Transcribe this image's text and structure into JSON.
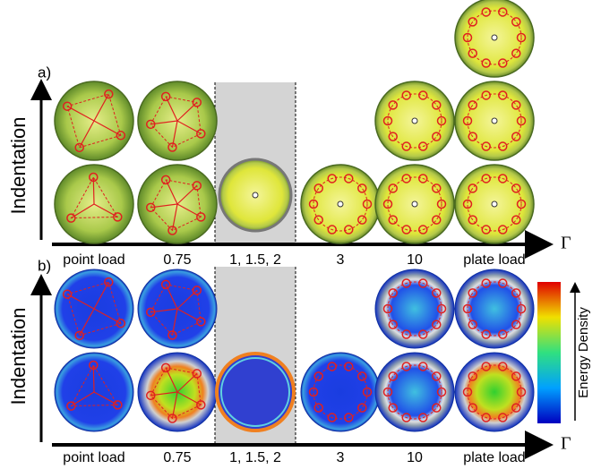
{
  "panels": [
    {
      "label": "a)",
      "y_axis_label": "Indentation",
      "x_axis_label": "Γ",
      "columns": [
        "point load",
        "0.75",
        "1, 1.5, 2",
        "3",
        "10",
        "plate load"
      ]
    },
    {
      "label": "b)",
      "y_axis_label": "Indentation",
      "x_axis_label": "Γ",
      "columns": [
        "point load",
        "0.75",
        "1, 1.5, 2",
        "3",
        "10",
        "plate load"
      ]
    }
  ],
  "colorbar": {
    "label": "Energy Density"
  }
}
